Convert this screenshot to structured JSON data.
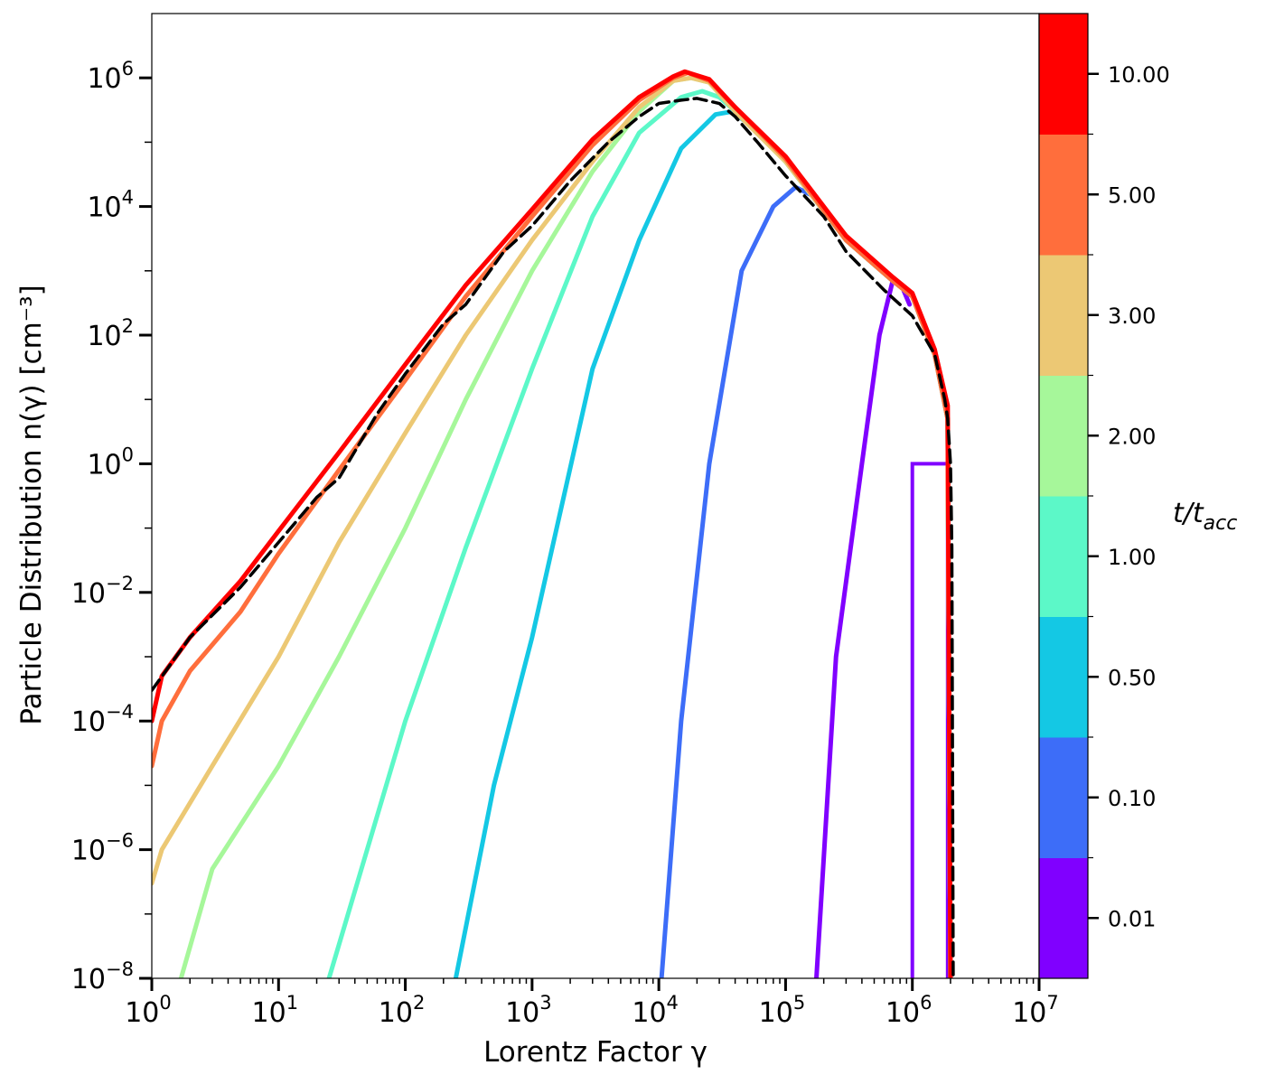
{
  "chart_data": {
    "type": "line",
    "title": "",
    "xlabel": "Lorentz Factor γ",
    "ylabel": "Particle Distribution n(γ) [cm⁻³]",
    "xscale": "log",
    "yscale": "log",
    "xlim": [
      1,
      10000000
    ],
    "ylim": [
      1e-08,
      10000000
    ],
    "x_tick_labels": [
      {
        "base": "10",
        "exp": "0",
        "value": 1
      },
      {
        "base": "10",
        "exp": "1",
        "value": 10
      },
      {
        "base": "10",
        "exp": "2",
        "value": 100
      },
      {
        "base": "10",
        "exp": "3",
        "value": 1000
      },
      {
        "base": "10",
        "exp": "4",
        "value": 10000
      },
      {
        "base": "10",
        "exp": "5",
        "value": 100000
      },
      {
        "base": "10",
        "exp": "6",
        "value": 1000000
      },
      {
        "base": "10",
        "exp": "7",
        "value": 10000000
      }
    ],
    "y_tick_labels": [
      {
        "base": "10",
        "exp": "−8",
        "value": 1e-08
      },
      {
        "base": "10",
        "exp": "−6",
        "value": 1e-06
      },
      {
        "base": "10",
        "exp": "−4",
        "value": 0.0001
      },
      {
        "base": "10",
        "exp": "−2",
        "value": 0.01
      },
      {
        "base": "10",
        "exp": "0",
        "value": 1
      },
      {
        "base": "10",
        "exp": "2",
        "value": 100
      },
      {
        "base": "10",
        "exp": "4",
        "value": 10000
      },
      {
        "base": "10",
        "exp": "6",
        "value": 1000000
      }
    ],
    "grid": false,
    "colorbar": {
      "title": "t/tacc",
      "ticks": [
        "0.01",
        "0.10",
        "0.50",
        "1.00",
        "2.00",
        "3.00",
        "5.00",
        "10.00"
      ],
      "colors": [
        "#8000ff",
        "#3d6df8",
        "#14c8e4",
        "#5cf8c8",
        "#a6f79a",
        "#ecc874",
        "#ff6e3c",
        "#ff0000"
      ]
    },
    "series": [
      {
        "t": "0.01",
        "color": "#8000ff",
        "style": "solid",
        "points": [
          [
            175000,
            1e-08
          ],
          [
            250000,
            0.001
          ],
          [
            400000,
            1
          ],
          [
            550000,
            100
          ],
          [
            700000,
            700
          ],
          [
            820000,
            600
          ],
          [
            950000,
            300
          ]
        ],
        "step": [
          [
            1000000,
            1e-08
          ],
          [
            1000000,
            1
          ],
          [
            1900000,
            1
          ],
          [
            1900000,
            1e-08
          ]
        ]
      },
      {
        "t": "0.10",
        "color": "#3d6df8",
        "style": "solid",
        "points": [
          [
            10500,
            1e-08
          ],
          [
            15000,
            0.0001
          ],
          [
            25000,
            1
          ],
          [
            45000,
            1000
          ],
          [
            80000,
            10000
          ],
          [
            120000,
            20000
          ],
          [
            160000,
            15000
          ],
          [
            300000,
            3000
          ],
          [
            700000,
            700
          ],
          [
            1000000,
            400
          ],
          [
            1500000,
            50
          ],
          [
            1900000,
            5
          ],
          [
            2000000,
            1e-08
          ]
        ]
      },
      {
        "t": "0.50",
        "color": "#14c8e4",
        "style": "solid",
        "points": [
          [
            250,
            1e-08
          ],
          [
            500,
            1e-05
          ],
          [
            1000,
            0.002
          ],
          [
            3000,
            30
          ],
          [
            7000,
            3000
          ],
          [
            15000,
            80000
          ],
          [
            28000,
            270000
          ],
          [
            38000,
            300000
          ],
          [
            60000,
            150000
          ],
          [
            100000,
            50000
          ],
          [
            300000,
            3000
          ],
          [
            700000,
            700
          ],
          [
            1000000,
            400
          ],
          [
            1500000,
            50
          ],
          [
            1900000,
            5
          ],
          [
            2000000,
            1e-08
          ]
        ]
      },
      {
        "t": "1.00",
        "color": "#5cf8c8",
        "style": "solid",
        "points": [
          [
            25,
            1e-08
          ],
          [
            50,
            1e-06
          ],
          [
            100,
            0.0001
          ],
          [
            300,
            0.05
          ],
          [
            1000,
            30
          ],
          [
            3000,
            7000
          ],
          [
            7000,
            140000
          ],
          [
            15000,
            500000
          ],
          [
            22000,
            620000
          ],
          [
            30000,
            500000
          ],
          [
            60000,
            150000
          ],
          [
            100000,
            50000
          ],
          [
            300000,
            3000
          ],
          [
            700000,
            700
          ],
          [
            1000000,
            400
          ],
          [
            1500000,
            50
          ],
          [
            1900000,
            5
          ],
          [
            2000000,
            1e-08
          ]
        ]
      },
      {
        "t": "2.00",
        "color": "#a6f79a",
        "style": "solid",
        "points": [
          [
            1.7,
            1e-08
          ],
          [
            3,
            5e-07
          ],
          [
            10,
            2e-05
          ],
          [
            30,
            0.001
          ],
          [
            100,
            0.1
          ],
          [
            300,
            10
          ],
          [
            1000,
            1000
          ],
          [
            3000,
            35000
          ],
          [
            7000,
            300000
          ],
          [
            13000,
            900000
          ],
          [
            18000,
            1000000
          ],
          [
            25000,
            850000
          ],
          [
            40000,
            300000
          ],
          [
            100000,
            50000
          ],
          [
            300000,
            3000
          ],
          [
            700000,
            700
          ],
          [
            1000000,
            400
          ],
          [
            1500000,
            50
          ],
          [
            1900000,
            5
          ],
          [
            2000000,
            1e-08
          ]
        ]
      },
      {
        "t": "3.00",
        "color": "#ecc874",
        "style": "solid",
        "points": [
          [
            1,
            3e-07
          ],
          [
            1.2,
            1e-06
          ],
          [
            3,
            2e-05
          ],
          [
            10,
            0.001
          ],
          [
            30,
            0.06
          ],
          [
            100,
            3
          ],
          [
            300,
            100
          ],
          [
            1000,
            3000
          ],
          [
            3000,
            50000
          ],
          [
            7000,
            350000
          ],
          [
            13000,
            900000
          ],
          [
            18000,
            1000000
          ],
          [
            25000,
            850000
          ],
          [
            40000,
            300000
          ],
          [
            100000,
            50000
          ],
          [
            300000,
            3000
          ],
          [
            700000,
            700
          ],
          [
            1000000,
            400
          ],
          [
            1500000,
            50
          ],
          [
            1900000,
            5
          ],
          [
            2000000,
            1e-08
          ]
        ]
      },
      {
        "t": "5.00",
        "color": "#ff6e3c",
        "style": "solid",
        "points": [
          [
            1,
            2e-05
          ],
          [
            1.2,
            0.0001
          ],
          [
            2,
            0.0006
          ],
          [
            5,
            0.005
          ],
          [
            10,
            0.04
          ],
          [
            30,
            0.8
          ],
          [
            100,
            20
          ],
          [
            300,
            400
          ],
          [
            1000,
            7000
          ],
          [
            3000,
            90000
          ],
          [
            7000,
            450000
          ],
          [
            13000,
            1000000
          ],
          [
            17000,
            1200000
          ],
          [
            25000,
            900000
          ],
          [
            40000,
            350000
          ],
          [
            100000,
            55000
          ],
          [
            300000,
            3000
          ],
          [
            700000,
            700
          ],
          [
            1000000,
            400
          ],
          [
            1500000,
            50
          ],
          [
            1900000,
            5
          ],
          [
            2000000,
            1e-08
          ]
        ]
      },
      {
        "t": "10.00",
        "color": "#ff0000",
        "style": "solid",
        "points": [
          [
            1,
            0.0001
          ],
          [
            1.2,
            0.0005
          ],
          [
            2,
            0.002
          ],
          [
            5,
            0.015
          ],
          [
            10,
            0.09
          ],
          [
            30,
            1.5
          ],
          [
            100,
            35
          ],
          [
            300,
            600
          ],
          [
            1000,
            9000
          ],
          [
            3000,
            110000
          ],
          [
            7000,
            500000
          ],
          [
            13000,
            1050000
          ],
          [
            16000,
            1250000
          ],
          [
            25000,
            950000
          ],
          [
            40000,
            350000
          ],
          [
            100000,
            60000
          ],
          [
            300000,
            3500
          ],
          [
            700000,
            800
          ],
          [
            1000000,
            450
          ],
          [
            1500000,
            60
          ],
          [
            1900000,
            8
          ],
          [
            2000000,
            1e-08
          ]
        ]
      },
      {
        "t": "",
        "color": "#000000",
        "style": "dashed",
        "points": [
          [
            1,
            0.0003
          ],
          [
            2,
            0.002
          ],
          [
            5,
            0.012
          ],
          [
            10,
            0.06
          ],
          [
            20,
            0.3
          ],
          [
            30,
            0.6
          ],
          [
            60,
            6
          ],
          [
            100,
            25
          ],
          [
            200,
            150
          ],
          [
            300,
            300
          ],
          [
            600,
            2000
          ],
          [
            1000,
            5000
          ],
          [
            2000,
            25000
          ],
          [
            4000,
            100000
          ],
          [
            7000,
            250000
          ],
          [
            10000,
            400000
          ],
          [
            15000,
            450000
          ],
          [
            20000,
            480000
          ],
          [
            30000,
            400000
          ],
          [
            40000,
            250000
          ],
          [
            60000,
            100000
          ],
          [
            100000,
            30000
          ],
          [
            200000,
            7000
          ],
          [
            300000,
            2000
          ],
          [
            600000,
            500
          ],
          [
            1000000,
            200
          ],
          [
            1500000,
            50
          ],
          [
            1800000,
            10
          ],
          [
            1900000,
            5
          ],
          [
            2000000,
            1
          ],
          [
            2050000,
            0.05
          ],
          [
            2100000,
            1e-08
          ]
        ]
      }
    ]
  }
}
